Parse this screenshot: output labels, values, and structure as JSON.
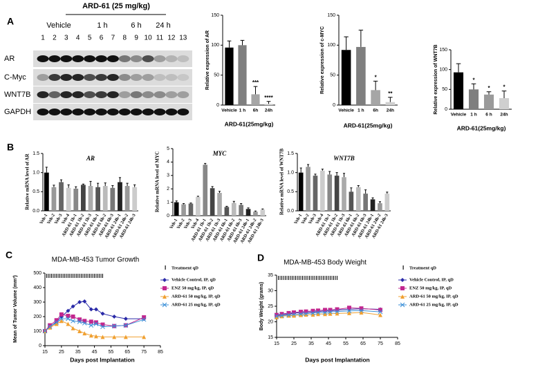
{
  "panels": [
    "A",
    "B",
    "C",
    "D"
  ],
  "blot": {
    "title": "ARD-61 (25 mg/kg)",
    "groups": [
      "Vehicle",
      "1 h",
      "6 h",
      "24 h"
    ],
    "lanes": [
      "1",
      "2",
      "3",
      "4",
      "5",
      "6",
      "7",
      "8",
      "9",
      "10",
      "11",
      "12",
      "13"
    ],
    "rows": [
      "AR",
      "C-Myc",
      "WNT7B",
      "GAPDH"
    ]
  },
  "chart_data": [
    {
      "type": "bar",
      "ylabel": "Relative expression of AR",
      "xlabel": "ARD-61(25mg/kg)",
      "categories": [
        "Vehicle",
        "1 h",
        "6h",
        "24h"
      ],
      "values": [
        96,
        100,
        18,
        2
      ],
      "errors": [
        11,
        8,
        13,
        4
      ],
      "significance": [
        null,
        null,
        "***",
        "****"
      ],
      "colors": [
        "#000000",
        "#7f7f7f",
        "#a6a6a6",
        "#d0d0d0"
      ],
      "ylim": [
        0,
        150
      ],
      "yticks": [
        0,
        50,
        100,
        150
      ]
    },
    {
      "type": "bar",
      "ylabel": "Relative expression of c-MYC",
      "xlabel": "ARD-61(25mg/kg)",
      "categories": [
        "Vehicle",
        "1 h",
        "6h",
        "24h"
      ],
      "values": [
        92,
        97,
        25,
        5
      ],
      "errors": [
        22,
        28,
        15,
        8
      ],
      "significance": [
        null,
        null,
        "*",
        "**"
      ],
      "colors": [
        "#000000",
        "#7f7f7f",
        "#a6a6a6",
        "#d0d0d0"
      ],
      "ylim": [
        0,
        150
      ],
      "yticks": [
        0,
        50,
        100,
        150
      ]
    },
    {
      "type": "bar",
      "ylabel": "Relative expression of WNT7B",
      "xlabel": "ARD-61(25mg/kg)",
      "categories": [
        "Vehicle",
        "1 h",
        "6 h",
        "24h"
      ],
      "values": [
        93,
        50,
        37,
        28
      ],
      "errors": [
        22,
        14,
        7,
        18
      ],
      "significance": [
        null,
        "*",
        "*",
        "*"
      ],
      "colors": [
        "#000000",
        "#7f7f7f",
        "#9a9a9a",
        "#cfcfcf"
      ],
      "ylim": [
        0,
        150
      ],
      "yticks": [
        0,
        50,
        100,
        150
      ]
    },
    {
      "type": "bar",
      "title": "AR",
      "ylabel": "Relative mRNA level of AR",
      "categories": [
        "Veh-1",
        "Veh-2",
        "Veh-3",
        "Veh-4",
        "ARD-61 1h-1",
        "ARD-61 1h-2",
        "ARD-61 1h-3",
        "ARD-61 6h-1",
        "ARD-61 6h-2",
        "ARD-61 6h-3",
        "ARD-61 24h-1",
        "ARD-61 24h-2",
        "ARD-61 24h-3"
      ],
      "values": [
        1.0,
        0.62,
        0.75,
        0.6,
        0.58,
        0.68,
        0.65,
        0.62,
        0.65,
        0.6,
        0.75,
        0.65,
        0.62
      ],
      "errors": [
        0.14,
        0.05,
        0.06,
        0.08,
        0.05,
        0.02,
        0.12,
        0.1,
        0.08,
        0.06,
        0.12,
        0.07,
        0.06
      ],
      "colors": [
        "#000000",
        "#999999",
        "#666666",
        "#cccccc",
        "#888888",
        "#444444",
        "#aaaaaa",
        "#555555",
        "#bbbbbb",
        "#777777",
        "#222222",
        "#999999",
        "#cccccc"
      ],
      "ylim": [
        0,
        1.5
      ],
      "yticks": [
        {
          "value": 0,
          "label": "0.0"
        },
        0.5,
        {
          "value": 1,
          "label": "1.0"
        },
        1.5
      ]
    },
    {
      "type": "bar",
      "title": "MYC",
      "ylabel": "Relative mRNA level of MYC",
      "categories": [
        "Veh-1",
        "Veh-2",
        "Veh-3",
        "Veh-4",
        "ARD-61 1h-1",
        "ARD-61 1h-2",
        "ARD-61 1h-3",
        "ARD-61 6h-1",
        "ARD-61 6h-2",
        "ARD-61 6h-3",
        "ARD-61 24h-1",
        "ARD-61 24h-2",
        "ARD-61 24h-3"
      ],
      "values": [
        1.0,
        0.85,
        0.9,
        1.4,
        3.8,
        2.05,
        1.7,
        0.65,
        0.95,
        0.8,
        0.5,
        0.3,
        0.45
      ],
      "errors": [
        0.1,
        0.05,
        0.05,
        0.05,
        0.1,
        0.12,
        0.12,
        0.05,
        0.12,
        0.1,
        0.08,
        0.05,
        0.05
      ],
      "colors": [
        "#000000",
        "#999999",
        "#666666",
        "#cccccc",
        "#888888",
        "#444444",
        "#aaaaaa",
        "#555555",
        "#bbbbbb",
        "#777777",
        "#222222",
        "#999999",
        "#cccccc"
      ],
      "ylim": [
        0,
        5
      ],
      "yticks": [
        0,
        1,
        2,
        3,
        4,
        5
      ]
    },
    {
      "type": "bar",
      "title": "WNT7B",
      "ylabel": "Relative mRNA level of WNT7B",
      "categories": [
        "Veh-1",
        "Veh-2",
        "Veh-3",
        "Veh-4",
        "ARD-61 1h-1",
        "ARD-61 1h-2",
        "ARD-61 1h-3",
        "ARD-61 6h-1",
        "ARD-61 6h-2",
        "ARD-61 6h-3",
        "ARD-61 24h-1",
        "ARD-61 24h-2",
        "ARD-61 24h-3"
      ],
      "values": [
        1.0,
        1.15,
        0.92,
        1.05,
        0.95,
        0.92,
        0.88,
        0.5,
        0.62,
        0.45,
        0.3,
        0.2,
        0.45
      ],
      "errors": [
        0.12,
        0.06,
        0.04,
        0.04,
        0.08,
        0.08,
        0.1,
        0.1,
        0.04,
        0.1,
        0.04,
        0.04,
        0.04
      ],
      "colors": [
        "#000000",
        "#999999",
        "#666666",
        "#cccccc",
        "#888888",
        "#444444",
        "#aaaaaa",
        "#555555",
        "#bbbbbb",
        "#777777",
        "#222222",
        "#999999",
        "#cccccc"
      ],
      "ylim": [
        0,
        1.5
      ],
      "yticks": [
        {
          "value": 0,
          "label": "0.0"
        },
        0.5,
        {
          "value": 1,
          "label": "1.0"
        },
        1.5
      ]
    },
    {
      "type": "line",
      "title": "MDA-MB-453 Tumor Growth",
      "xlabel": "Days post Implantation",
      "ylabel": "Mean of Tumor Volume (mm³)",
      "treatment_label": "Treatment qD",
      "x": [
        15,
        18,
        22,
        25,
        29,
        32,
        36,
        39,
        43,
        46,
        50,
        57,
        64,
        75
      ],
      "series": [
        {
          "name": "Vehicle Control,  IP, qD",
          "color": "#2a2aa8",
          "marker": "diamond",
          "values": [
            100,
            130,
            165,
            200,
            240,
            270,
            300,
            305,
            250,
            250,
            220,
            200,
            185,
            185
          ]
        },
        {
          "name": "ENZ  50 mg/kg, IP, qD",
          "color": "#c2278f",
          "marker": "square",
          "values": [
            100,
            140,
            175,
            215,
            205,
            200,
            180,
            170,
            165,
            160,
            145,
            135,
            140,
            195
          ]
        },
        {
          "name": "ARD-61  50 mg/kg, IP, qD",
          "color": "#f0a030",
          "marker": "triangle",
          "values": [
            100,
            125,
            150,
            170,
            150,
            120,
            100,
            85,
            70,
            65,
            60,
            60,
            60,
            60
          ]
        },
        {
          "name": "ARD-61  25 mg/kg, IP, qD",
          "color": "#3a8fd8",
          "marker": "x",
          "values": [
            100,
            130,
            160,
            185,
            185,
            170,
            165,
            155,
            140,
            150,
            130,
            135,
            140,
            180
          ]
        }
      ],
      "xlim": [
        15,
        85
      ],
      "xticks": [
        15,
        25,
        35,
        45,
        55,
        65,
        75,
        85
      ],
      "ylim": [
        0,
        500
      ],
      "yticks": [
        0,
        100,
        200,
        300,
        400,
        500
      ]
    },
    {
      "type": "line",
      "title": "MDA-MB-453  Body Weight",
      "xlabel": "Days post Implantation",
      "ylabel": "Body Weight (grams)",
      "treatment_label": "Treatment qD",
      "x": [
        15,
        18,
        22,
        25,
        29,
        32,
        36,
        39,
        43,
        46,
        50,
        57,
        64,
        75
      ],
      "series": [
        {
          "name": "Vehicle Control, IP, qD",
          "color": "#2a2aa8",
          "marker": "diamond",
          "values": [
            22,
            22.3,
            22.5,
            22.8,
            23,
            23,
            23.2,
            23.3,
            23.5,
            23.5,
            23.8,
            24,
            24.2,
            24
          ]
        },
        {
          "name": "ENZ 50 mg/kg, IP, qD",
          "color": "#c2278f",
          "marker": "square",
          "values": [
            22.2,
            22.5,
            22.8,
            23,
            23.2,
            23.3,
            23.5,
            23.6,
            23.8,
            23.8,
            24,
            24.5,
            24.3,
            23.8
          ]
        },
        {
          "name": "ARD-61 50 mg/kg, IP, qD",
          "color": "#f0a030",
          "marker": "triangle",
          "values": [
            21.5,
            21.8,
            22,
            22,
            22.2,
            22.3,
            22.3,
            22.5,
            22.5,
            22.6,
            22.7,
            22.8,
            23,
            22.2
          ]
        },
        {
          "name": "ARD-61 25 mg/kg, IP, qD",
          "color": "#3a8fd8",
          "marker": "x",
          "values": [
            21.8,
            22,
            22.2,
            22.4,
            22.5,
            22.6,
            22.8,
            23,
            23,
            23.2,
            23.3,
            23.5,
            23.6,
            23.2
          ]
        }
      ],
      "xlim": [
        15,
        85
      ],
      "xticks": [
        15,
        25,
        35,
        45,
        55,
        65,
        75,
        85
      ],
      "ylim": [
        15,
        35
      ],
      "yticks": [
        15,
        20,
        25,
        30,
        35
      ]
    }
  ]
}
